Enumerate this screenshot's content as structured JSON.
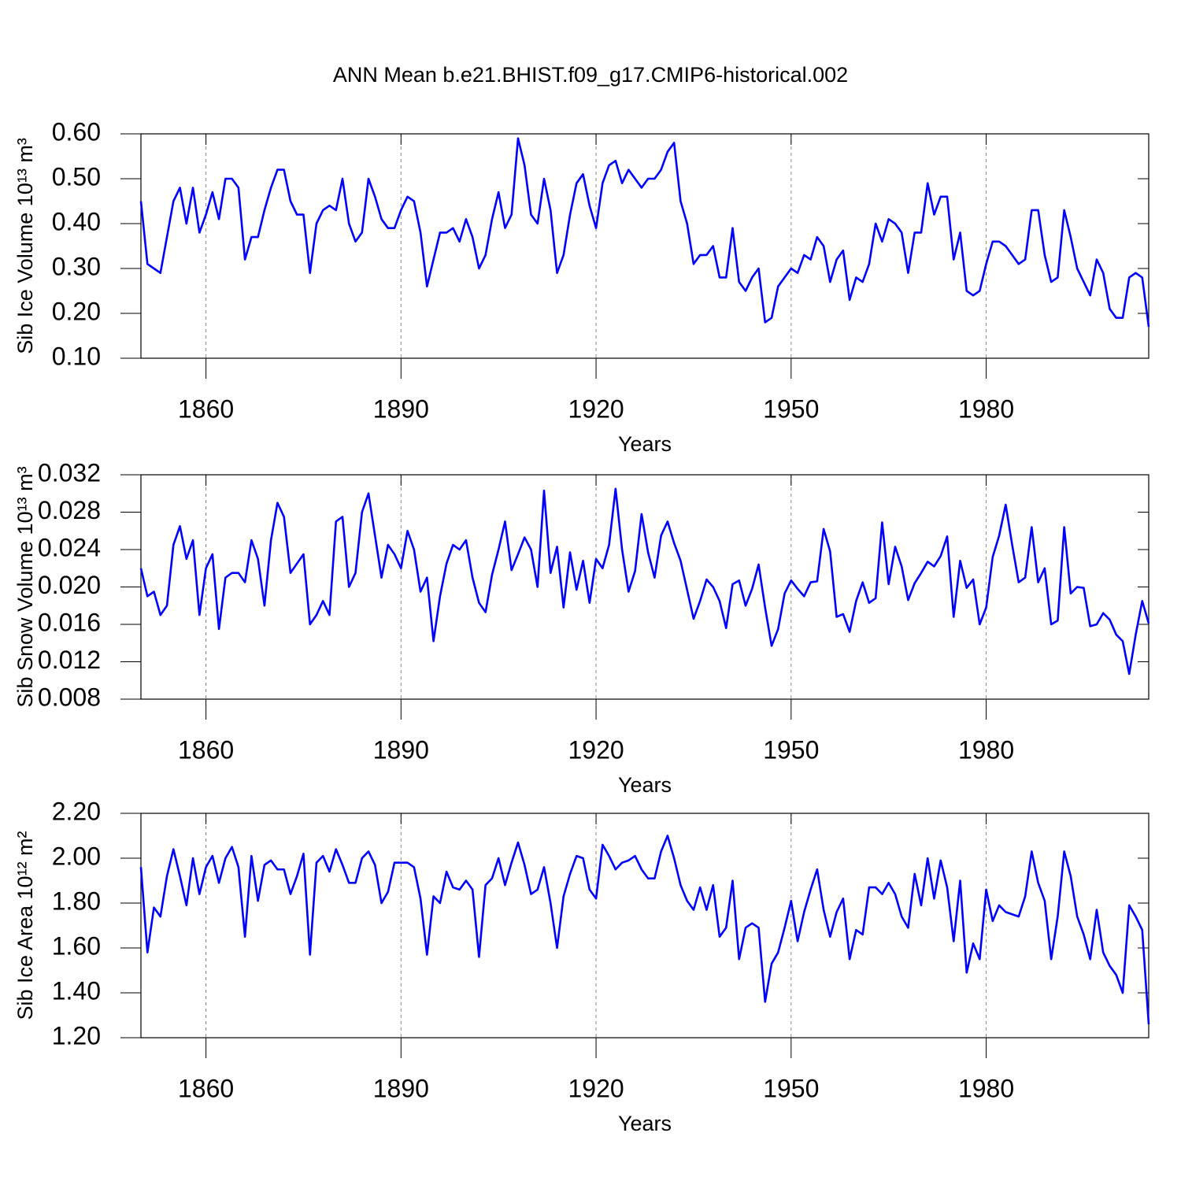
{
  "chart_data": [
    {
      "type": "line",
      "title": "ANN Mean b.e21.BHIST.f09_g17.CMIP6-historical.002",
      "xlabel": "Years",
      "ylabel": "Sib Ice Volume 10¹³ m³",
      "color": "#0000ff",
      "xgrid": true,
      "xlim": [
        1850,
        2005
      ],
      "xticks": [
        1860,
        1890,
        1920,
        1950,
        1980
      ],
      "ylim": [
        0.1,
        0.6
      ],
      "yticks": [
        {
          "value": 0.1,
          "label": "0.10"
        },
        {
          "value": 0.2,
          "label": "0.20"
        },
        {
          "value": 0.3,
          "label": "0.30"
        },
        {
          "value": 0.4,
          "label": "0.40"
        },
        {
          "value": 0.5,
          "label": "0.50"
        },
        {
          "value": 0.6,
          "label": "0.60"
        }
      ],
      "x": [
        1850,
        1851,
        1852,
        1853,
        1854,
        1855,
        1856,
        1857,
        1858,
        1859,
        1860,
        1861,
        1862,
        1863,
        1864,
        1865,
        1866,
        1867,
        1868,
        1869,
        1870,
        1871,
        1872,
        1873,
        1874,
        1875,
        1876,
        1877,
        1878,
        1879,
        1880,
        1881,
        1882,
        1883,
        1884,
        1885,
        1886,
        1887,
        1888,
        1889,
        1890,
        1891,
        1892,
        1893,
        1894,
        1895,
        1896,
        1897,
        1898,
        1899,
        1900,
        1901,
        1902,
        1903,
        1904,
        1905,
        1906,
        1907,
        1908,
        1909,
        1910,
        1911,
        1912,
        1913,
        1914,
        1915,
        1916,
        1917,
        1918,
        1919,
        1920,
        1921,
        1922,
        1923,
        1924,
        1925,
        1926,
        1927,
        1928,
        1929,
        1930,
        1931,
        1932,
        1933,
        1934,
        1935,
        1936,
        1937,
        1938,
        1939,
        1940,
        1941,
        1942,
        1943,
        1944,
        1945,
        1946,
        1947,
        1948,
        1949,
        1950,
        1951,
        1952,
        1953,
        1954,
        1955,
        1956,
        1957,
        1958,
        1959,
        1960,
        1961,
        1962,
        1963,
        1964,
        1965,
        1966,
        1967,
        1968,
        1969,
        1970,
        1971,
        1972,
        1973,
        1974,
        1975,
        1976,
        1977,
        1978,
        1979,
        1980,
        1981,
        1982,
        1983,
        1984,
        1985,
        1986,
        1987,
        1988,
        1989,
        1990,
        1991,
        1992,
        1993,
        1994,
        1995,
        1996,
        1997,
        1998,
        1999,
        2000,
        2001,
        2002,
        2003,
        2004,
        2005
      ],
      "values": [
        0.45,
        0.31,
        0.3,
        0.29,
        0.37,
        0.45,
        0.48,
        0.4,
        0.48,
        0.38,
        0.42,
        0.47,
        0.41,
        0.5,
        0.5,
        0.48,
        0.32,
        0.37,
        0.37,
        0.43,
        0.48,
        0.52,
        0.52,
        0.45,
        0.42,
        0.42,
        0.29,
        0.4,
        0.43,
        0.44,
        0.43,
        0.5,
        0.4,
        0.36,
        0.38,
        0.5,
        0.46,
        0.41,
        0.39,
        0.39,
        0.43,
        0.46,
        0.45,
        0.38,
        0.26,
        0.32,
        0.38,
        0.38,
        0.39,
        0.36,
        0.41,
        0.37,
        0.3,
        0.33,
        0.41,
        0.47,
        0.39,
        0.42,
        0.59,
        0.53,
        0.42,
        0.4,
        0.5,
        0.43,
        0.29,
        0.33,
        0.42,
        0.49,
        0.51,
        0.44,
        0.39,
        0.49,
        0.53,
        0.54,
        0.49,
        0.52,
        0.5,
        0.48,
        0.5,
        0.5,
        0.52,
        0.56,
        0.58,
        0.45,
        0.4,
        0.31,
        0.33,
        0.33,
        0.35,
        0.28,
        0.28,
        0.39,
        0.27,
        0.25,
        0.28,
        0.3,
        0.18,
        0.19,
        0.26,
        0.28,
        0.3,
        0.29,
        0.33,
        0.32,
        0.37,
        0.35,
        0.27,
        0.32,
        0.34,
        0.23,
        0.28,
        0.27,
        0.31,
        0.4,
        0.36,
        0.41,
        0.4,
        0.38,
        0.29,
        0.38,
        0.38,
        0.49,
        0.42,
        0.46,
        0.46,
        0.32,
        0.38,
        0.25,
        0.24,
        0.25,
        0.31,
        0.36,
        0.36,
        0.35,
        0.33,
        0.31,
        0.32,
        0.43,
        0.43,
        0.33,
        0.27,
        0.28,
        0.43,
        0.37,
        0.3,
        0.27,
        0.24,
        0.32,
        0.29,
        0.21,
        0.19,
        0.19,
        0.28,
        0.29,
        0.28,
        0.17
      ]
    },
    {
      "type": "line",
      "xlabel": "Years",
      "ylabel": "Sib Snow Volume 10¹³ m³",
      "color": "#0000ff",
      "xgrid": true,
      "xlim": [
        1850,
        2005
      ],
      "xticks": [
        1860,
        1890,
        1920,
        1950,
        1980
      ],
      "ylim": [
        0.008,
        0.032
      ],
      "yticks": [
        0.008,
        0.012,
        0.016,
        {
          "value": 0.02,
          "label": "0.020"
        },
        0.024,
        0.028,
        0.032
      ],
      "x": [
        1850,
        1851,
        1852,
        1853,
        1854,
        1855,
        1856,
        1857,
        1858,
        1859,
        1860,
        1861,
        1862,
        1863,
        1864,
        1865,
        1866,
        1867,
        1868,
        1869,
        1870,
        1871,
        1872,
        1873,
        1874,
        1875,
        1876,
        1877,
        1878,
        1879,
        1880,
        1881,
        1882,
        1883,
        1884,
        1885,
        1886,
        1887,
        1888,
        1889,
        1890,
        1891,
        1892,
        1893,
        1894,
        1895,
        1896,
        1897,
        1898,
        1899,
        1900,
        1901,
        1902,
        1903,
        1904,
        1905,
        1906,
        1907,
        1908,
        1909,
        1910,
        1911,
        1912,
        1913,
        1914,
        1915,
        1916,
        1917,
        1918,
        1919,
        1920,
        1921,
        1922,
        1923,
        1924,
        1925,
        1926,
        1927,
        1928,
        1929,
        1930,
        1931,
        1932,
        1933,
        1934,
        1935,
        1936,
        1937,
        1938,
        1939,
        1940,
        1941,
        1942,
        1943,
        1944,
        1945,
        1946,
        1947,
        1948,
        1949,
        1950,
        1951,
        1952,
        1953,
        1954,
        1955,
        1956,
        1957,
        1958,
        1959,
        1960,
        1961,
        1962,
        1963,
        1964,
        1965,
        1966,
        1967,
        1968,
        1969,
        1970,
        1971,
        1972,
        1973,
        1974,
        1975,
        1976,
        1977,
        1978,
        1979,
        1980,
        1981,
        1982,
        1983,
        1984,
        1985,
        1986,
        1987,
        1988,
        1989,
        1990,
        1991,
        1992,
        1993,
        1994,
        1995,
        1996,
        1997,
        1998,
        1999,
        2000,
        2001,
        2002,
        2003,
        2004,
        2005
      ],
      "values": [
        0.022,
        0.019,
        0.0195,
        0.017,
        0.018,
        0.0245,
        0.0265,
        0.023,
        0.025,
        0.017,
        0.022,
        0.0235,
        0.0155,
        0.021,
        0.0215,
        0.0215,
        0.0205,
        0.025,
        0.023,
        0.018,
        0.025,
        0.029,
        0.0275,
        0.0215,
        0.0225,
        0.0235,
        0.016,
        0.017,
        0.0185,
        0.017,
        0.027,
        0.0275,
        0.02,
        0.0215,
        0.028,
        0.03,
        0.0255,
        0.021,
        0.0245,
        0.0235,
        0.022,
        0.026,
        0.024,
        0.0195,
        0.021,
        0.0142,
        0.019,
        0.0225,
        0.0245,
        0.024,
        0.025,
        0.021,
        0.0183,
        0.0173,
        0.0213,
        0.024,
        0.027,
        0.0218,
        0.0235,
        0.0253,
        0.024,
        0.02,
        0.0303,
        0.0215,
        0.0243,
        0.0178,
        0.0237,
        0.0197,
        0.0228,
        0.0183,
        0.023,
        0.022,
        0.0245,
        0.0305,
        0.024,
        0.0195,
        0.0217,
        0.0278,
        0.0237,
        0.021,
        0.0255,
        0.027,
        0.0247,
        0.0228,
        0.0197,
        0.0166,
        0.0185,
        0.0208,
        0.02,
        0.0185,
        0.0156,
        0.0203,
        0.0207,
        0.018,
        0.0198,
        0.0224,
        0.0178,
        0.0137,
        0.0155,
        0.0193,
        0.0207,
        0.0198,
        0.019,
        0.0205,
        0.0206,
        0.0262,
        0.0238,
        0.0168,
        0.0171,
        0.0152,
        0.0185,
        0.0205,
        0.0183,
        0.0188,
        0.0269,
        0.0203,
        0.0243,
        0.0222,
        0.0186,
        0.0204,
        0.0215,
        0.0227,
        0.0222,
        0.0233,
        0.0254,
        0.0168,
        0.0228,
        0.0199,
        0.0208,
        0.016,
        0.0178,
        0.0232,
        0.0255,
        0.0288,
        0.0245,
        0.0205,
        0.021,
        0.0264,
        0.0205,
        0.022,
        0.016,
        0.0164,
        0.0264,
        0.0193,
        0.02,
        0.0199,
        0.0158,
        0.016,
        0.0172,
        0.0165,
        0.0149,
        0.0142,
        0.0107,
        0.0149,
        0.0185,
        0.0161
      ]
    },
    {
      "type": "line",
      "xlabel": "Years",
      "ylabel": "Sib Ice Area 10¹² m²",
      "color": "#0000ff",
      "xgrid": true,
      "xlim": [
        1850,
        2005
      ],
      "xticks": [
        1860,
        1890,
        1920,
        1950,
        1980
      ],
      "ylim": [
        1.2,
        2.2
      ],
      "yticks": [
        {
          "value": 1.2,
          "label": "1.20"
        },
        {
          "value": 1.4,
          "label": "1.40"
        },
        {
          "value": 1.6,
          "label": "1.60"
        },
        {
          "value": 1.8,
          "label": "1.80"
        },
        {
          "value": 2.0,
          "label": "2.00"
        },
        {
          "value": 2.2,
          "label": "2.20"
        }
      ],
      "x": [
        1850,
        1851,
        1852,
        1853,
        1854,
        1855,
        1856,
        1857,
        1858,
        1859,
        1860,
        1861,
        1862,
        1863,
        1864,
        1865,
        1866,
        1867,
        1868,
        1869,
        1870,
        1871,
        1872,
        1873,
        1874,
        1875,
        1876,
        1877,
        1878,
        1879,
        1880,
        1881,
        1882,
        1883,
        1884,
        1885,
        1886,
        1887,
        1888,
        1889,
        1890,
        1891,
        1892,
        1893,
        1894,
        1895,
        1896,
        1897,
        1898,
        1899,
        1900,
        1901,
        1902,
        1903,
        1904,
        1905,
        1906,
        1907,
        1908,
        1909,
        1910,
        1911,
        1912,
        1913,
        1914,
        1915,
        1916,
        1917,
        1918,
        1919,
        1920,
        1921,
        1922,
        1923,
        1924,
        1925,
        1926,
        1927,
        1928,
        1929,
        1930,
        1931,
        1932,
        1933,
        1934,
        1935,
        1936,
        1937,
        1938,
        1939,
        1940,
        1941,
        1942,
        1943,
        1944,
        1945,
        1946,
        1947,
        1948,
        1949,
        1950,
        1951,
        1952,
        1953,
        1954,
        1955,
        1956,
        1957,
        1958,
        1959,
        1960,
        1961,
        1962,
        1963,
        1964,
        1965,
        1966,
        1967,
        1968,
        1969,
        1970,
        1971,
        1972,
        1973,
        1974,
        1975,
        1976,
        1977,
        1978,
        1979,
        1980,
        1981,
        1982,
        1983,
        1984,
        1985,
        1986,
        1987,
        1988,
        1989,
        1990,
        1991,
        1992,
        1993,
        1994,
        1995,
        1996,
        1997,
        1998,
        1999,
        2000,
        2001,
        2002,
        2003,
        2004,
        2005
      ],
      "values": [
        1.96,
        1.58,
        1.78,
        1.74,
        1.92,
        2.04,
        1.92,
        1.79,
        2.0,
        1.84,
        1.96,
        2.01,
        1.89,
        2.0,
        2.05,
        1.96,
        1.65,
        2.01,
        1.81,
        1.97,
        1.99,
        1.95,
        1.95,
        1.84,
        1.92,
        2.02,
        1.57,
        1.98,
        2.01,
        1.94,
        2.04,
        1.97,
        1.89,
        1.89,
        2.0,
        2.03,
        1.97,
        1.8,
        1.85,
        1.98,
        1.98,
        1.98,
        1.96,
        1.82,
        1.57,
        1.83,
        1.8,
        1.94,
        1.87,
        1.86,
        1.9,
        1.86,
        1.56,
        1.88,
        1.91,
        2.0,
        1.88,
        1.98,
        2.07,
        1.97,
        1.84,
        1.86,
        1.96,
        1.8,
        1.6,
        1.83,
        1.93,
        2.01,
        2.0,
        1.86,
        1.82,
        2.06,
        2.01,
        1.95,
        1.98,
        1.99,
        2.01,
        1.95,
        1.91,
        1.91,
        2.03,
        2.1,
        2.0,
        1.88,
        1.81,
        1.77,
        1.87,
        1.77,
        1.88,
        1.65,
        1.69,
        1.9,
        1.55,
        1.69,
        1.71,
        1.69,
        1.36,
        1.53,
        1.58,
        1.69,
        1.81,
        1.63,
        1.76,
        1.86,
        1.95,
        1.77,
        1.65,
        1.76,
        1.82,
        1.55,
        1.68,
        1.66,
        1.87,
        1.87,
        1.84,
        1.89,
        1.84,
        1.74,
        1.69,
        1.93,
        1.79,
        2.0,
        1.82,
        1.99,
        1.87,
        1.63,
        1.9,
        1.49,
        1.62,
        1.55,
        1.86,
        1.72,
        1.79,
        1.76,
        1.75,
        1.74,
        1.83,
        2.03,
        1.89,
        1.81,
        1.55,
        1.74,
        2.03,
        1.92,
        1.74,
        1.66,
        1.55,
        1.77,
        1.58,
        1.52,
        1.48,
        1.4,
        1.79,
        1.74,
        1.68,
        1.26
      ]
    }
  ]
}
